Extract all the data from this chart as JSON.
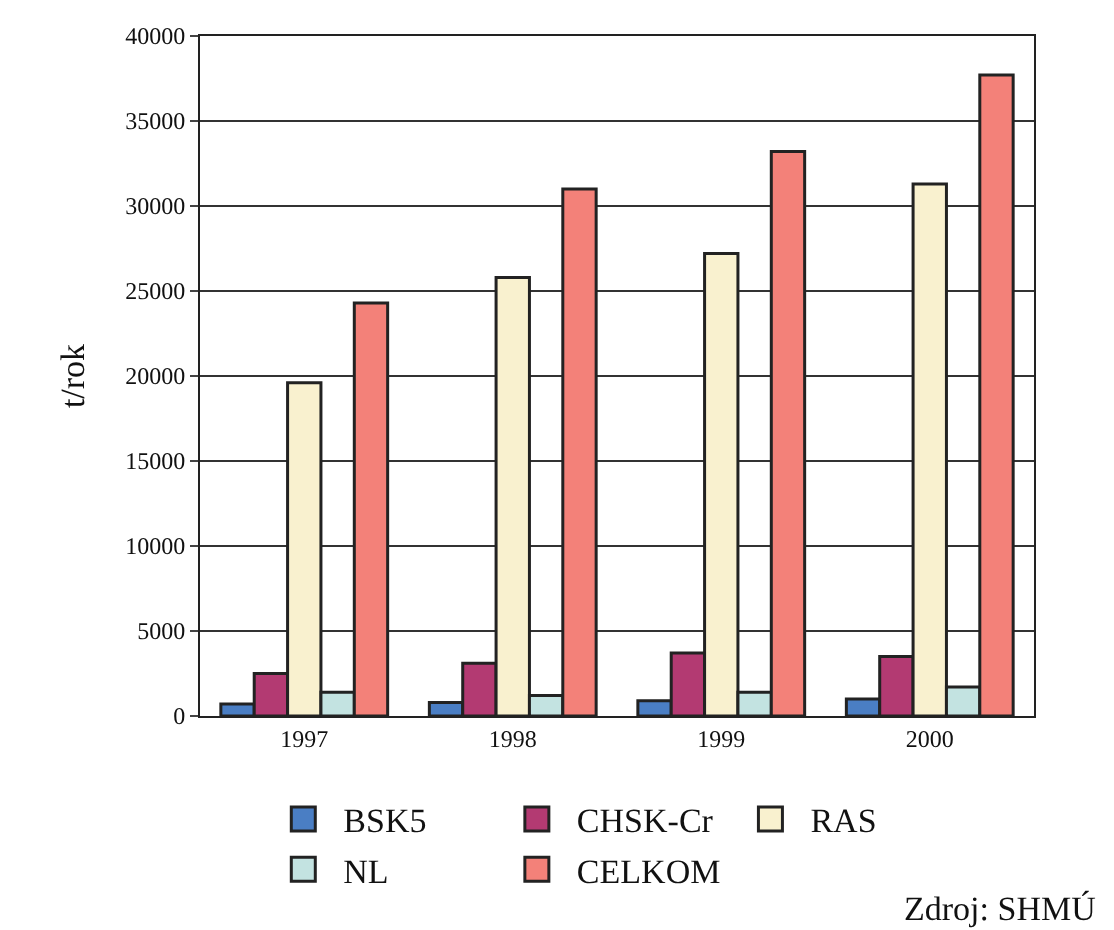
{
  "chart_data": {
    "type": "bar",
    "ylabel": "t/rok",
    "categories": [
      "1997",
      "1998",
      "1999",
      "2000"
    ],
    "series": [
      {
        "name": "BSK5",
        "color": "#4a7ec4",
        "values": [
          700,
          800,
          900,
          1000
        ]
      },
      {
        "name": "CHSK-Cr",
        "color": "#b33a72",
        "values": [
          2500,
          3100,
          3700,
          3500
        ]
      },
      {
        "name": "RAS",
        "color": "#f9f1cf",
        "values": [
          19600,
          25800,
          27200,
          31300
        ]
      },
      {
        "name": "NL",
        "color": "#c3e3e1",
        "values": [
          1400,
          1200,
          1400,
          1700
        ]
      },
      {
        "name": "CELKOM",
        "color": "#f38179",
        "values": [
          24300,
          31000,
          33200,
          37700
        ]
      }
    ],
    "ylim": [
      0,
      40000
    ],
    "yticks": [
      0,
      5000,
      10000,
      15000,
      20000,
      25000,
      30000,
      35000,
      40000
    ],
    "grid": "y",
    "legend": "bottom",
    "annotations": [
      "Zdroj: SHMÚ"
    ]
  }
}
